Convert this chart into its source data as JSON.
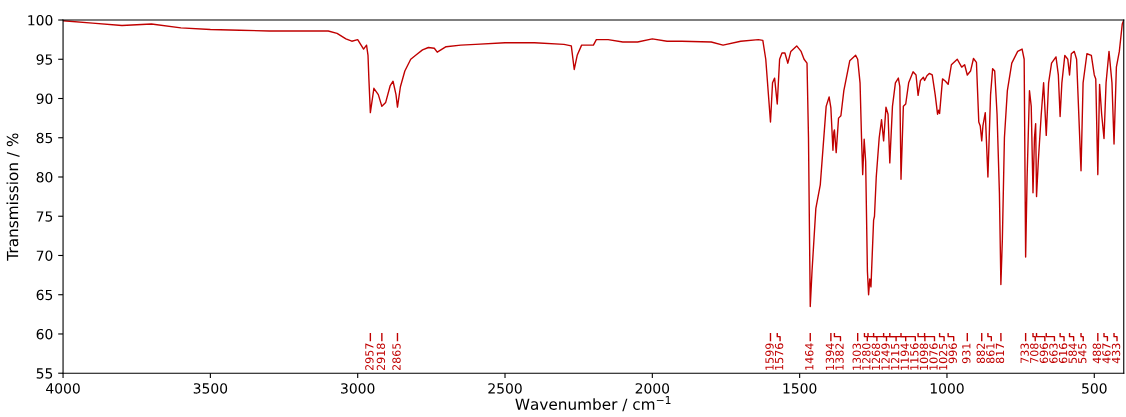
{
  "chart_data": {
    "type": "line",
    "xlabel": "Wavenumber / cm$^{−1}$",
    "ylabel": "Transmission / %",
    "xlim": [
      4000,
      400
    ],
    "xticks": [
      4000,
      3500,
      3000,
      2500,
      2000,
      1500,
      1000,
      500
    ],
    "ylim": [
      55,
      100
    ],
    "yticks": [
      55,
      60,
      65,
      70,
      75,
      80,
      85,
      90,
      95,
      100
    ],
    "grid": false,
    "marker": "none",
    "line_style": "solid",
    "series": [
      {
        "color": "#c00000",
        "x": [
          4000,
          3900,
          3800,
          3700,
          3600,
          3500,
          3400,
          3300,
          3200,
          3100,
          3070,
          3040,
          3020,
          3000,
          2990,
          2980,
          2970,
          2965,
          2962,
          2957,
          2945,
          2930,
          2918,
          2905,
          2890,
          2880,
          2870,
          2865,
          2855,
          2840,
          2820,
          2800,
          2780,
          2760,
          2740,
          2730,
          2700,
          2650,
          2600,
          2500,
          2400,
          2300,
          2275,
          2265,
          2255,
          2240,
          2200,
          2190,
          2150,
          2100,
          2050,
          2000,
          1950,
          1900,
          1800,
          1760,
          1700,
          1640,
          1625,
          1615,
          1605,
          1599,
          1592,
          1585,
          1576,
          1568,
          1560,
          1550,
          1540,
          1530,
          1510,
          1495,
          1485,
          1475,
          1470,
          1464,
          1458,
          1445,
          1430,
          1420,
          1410,
          1400,
          1394,
          1387,
          1384,
          1382,
          1376,
          1368,
          1360,
          1350,
          1330,
          1310,
          1303,
          1295,
          1290,
          1286,
          1281,
          1276,
          1270,
          1266,
          1262,
          1258,
          1249,
          1246,
          1240,
          1230,
          1222,
          1215,
          1207,
          1200,
          1194,
          1185,
          1175,
          1165,
          1160,
          1156,
          1148,
          1140,
          1130,
          1115,
          1105,
          1098,
          1090,
          1080,
          1076,
          1068,
          1060,
          1050,
          1040,
          1032,
          1028,
          1025,
          1015,
          1005,
          996,
          985,
          965,
          950,
          940,
          931,
          920,
          910,
          900,
          892,
          887,
          882,
          878,
          870,
          861,
          852,
          845,
          838,
          830,
          822,
          817,
          812,
          805,
          795,
          780,
          760,
          745,
          738,
          733,
          728,
          720,
          714,
          708,
          703,
          699,
          696,
          690,
          680,
          672,
          663,
          655,
          645,
          630,
          622,
          616,
          610,
          600,
          590,
          584,
          578,
          568,
          560,
          545,
          538,
          525,
          510,
          500,
          495,
          488,
          482,
          475,
          467,
          460,
          450,
          440,
          433,
          425,
          415,
          405,
          400
        ],
        "values": [
          99.9,
          99.6,
          99.3,
          99.5,
          99.0,
          98.8,
          98.7,
          98.6,
          98.6,
          98.6,
          98.3,
          97.6,
          97.3,
          97.5,
          96.9,
          96.3,
          96.8,
          95.5,
          92.5,
          88.2,
          91.3,
          90.5,
          89.0,
          89.5,
          91.6,
          92.2,
          90.5,
          88.9,
          91.5,
          93.5,
          95.0,
          95.6,
          96.2,
          96.5,
          96.4,
          95.9,
          96.6,
          96.8,
          96.9,
          97.1,
          97.1,
          96.9,
          96.7,
          93.7,
          95.5,
          96.8,
          96.8,
          97.5,
          97.5,
          97.2,
          97.2,
          97.6,
          97.3,
          97.3,
          97.2,
          96.8,
          97.3,
          97.5,
          97.4,
          95.0,
          90.0,
          87.0,
          92.0,
          92.6,
          89.3,
          95.0,
          95.8,
          95.8,
          94.5,
          96.0,
          96.7,
          96.0,
          95.0,
          94.5,
          85.0,
          63.5,
          68.0,
          76.0,
          79.0,
          84.0,
          89.0,
          90.2,
          88.8,
          83.4,
          85.7,
          86.0,
          83.1,
          87.5,
          87.8,
          91.0,
          94.8,
          95.5,
          95.0,
          92.0,
          85.0,
          80.3,
          84.8,
          82.0,
          68.0,
          65.0,
          67.0,
          66.0,
          74.5,
          75.0,
          80.0,
          85.0,
          87.3,
          84.6,
          88.9,
          88.0,
          81.8,
          89.0,
          92.0,
          92.6,
          91.5,
          79.7,
          89.0,
          89.3,
          92.0,
          93.4,
          93.0,
          90.4,
          92.3,
          92.7,
          92.3,
          92.9,
          93.2,
          93.0,
          90.5,
          88.0,
          88.5,
          88.1,
          92.5,
          92.2,
          91.8,
          94.3,
          95.0,
          94.0,
          94.3,
          93.0,
          93.5,
          95.1,
          94.6,
          87.0,
          86.5,
          84.6,
          86.5,
          88.2,
          80.0,
          90.5,
          93.8,
          93.5,
          88.0,
          78.0,
          66.3,
          72.0,
          85.0,
          91.0,
          94.5,
          96.0,
          96.3,
          95.0,
          69.8,
          80.0,
          91.0,
          89.0,
          78.0,
          85.0,
          86.8,
          77.5,
          82.0,
          88.0,
          92.0,
          85.3,
          92.0,
          94.5,
          95.3,
          93.0,
          87.7,
          92.0,
          95.5,
          95.0,
          93.0,
          95.7,
          96.0,
          95.0,
          80.8,
          92.0,
          95.7,
          95.5,
          93.0,
          92.5,
          80.3,
          91.8,
          88.0,
          84.9,
          92.0,
          96.0,
          92.0,
          84.2,
          94.0,
          96.0,
          99.5,
          100
        ]
      }
    ],
    "annotations": [
      {
        "text": "2957",
        "x": 2957
      },
      {
        "text": "2918",
        "x": 2918
      },
      {
        "text": "2865",
        "x": 2865
      },
      {
        "text": "1599",
        "x": 1599
      },
      {
        "text": "1576",
        "x": 1576
      },
      {
        "text": "1464",
        "x": 1464
      },
      {
        "text": "1394",
        "x": 1394
      },
      {
        "text": "1382",
        "x": 1382
      },
      {
        "text": "1303",
        "x": 1303
      },
      {
        "text": "1280",
        "x": 1280
      },
      {
        "text": "1268",
        "x": 1268
      },
      {
        "text": "1249",
        "x": 1249
      },
      {
        "text": "1215",
        "x": 1215
      },
      {
        "text": "1194",
        "x": 1194
      },
      {
        "text": "1156",
        "x": 1156
      },
      {
        "text": "1098",
        "x": 1098
      },
      {
        "text": "1076",
        "x": 1076
      },
      {
        "text": "1025",
        "x": 1025
      },
      {
        "text": "996",
        "x": 996
      },
      {
        "text": "931",
        "x": 931
      },
      {
        "text": "882",
        "x": 882
      },
      {
        "text": "861",
        "x": 861
      },
      {
        "text": "817",
        "x": 817
      },
      {
        "text": "733",
        "x": 733
      },
      {
        "text": "708",
        "x": 708
      },
      {
        "text": "696",
        "x": 696
      },
      {
        "text": "663",
        "x": 663
      },
      {
        "text": "616",
        "x": 616
      },
      {
        "text": "584",
        "x": 584
      },
      {
        "text": "545",
        "x": 545
      },
      {
        "text": "488",
        "x": 488
      },
      {
        "text": "467",
        "x": 467
      },
      {
        "text": "433",
        "x": 433
      }
    ]
  }
}
